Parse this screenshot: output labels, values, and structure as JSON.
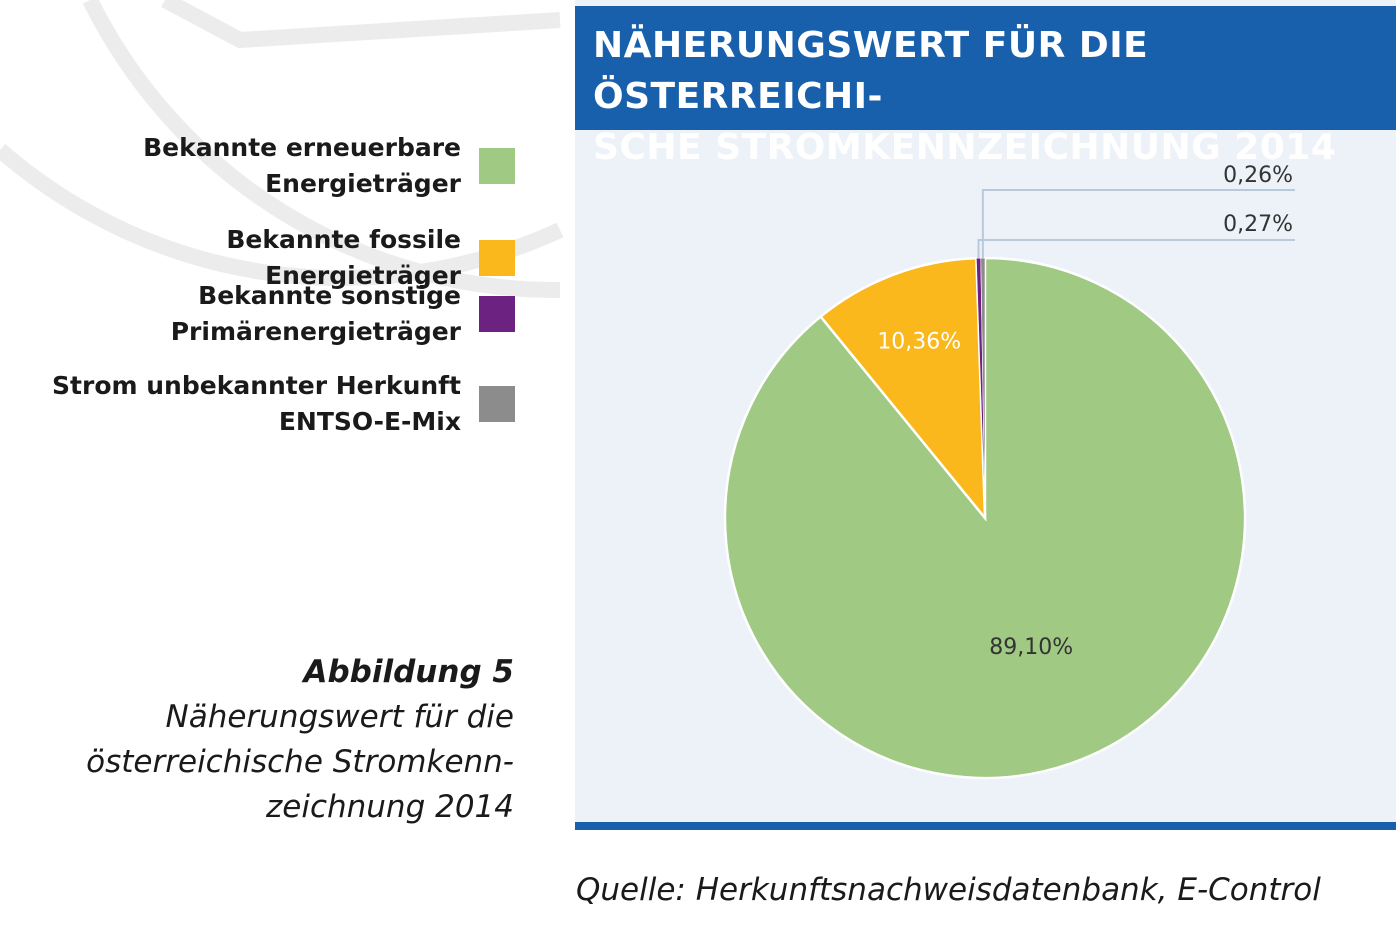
{
  "chart_data": {
    "type": "pie",
    "title": "NÄHERUNGSWERT FÜR DIE ÖSTERREICHI-\nSCHE STROMKENNZEICHNUNG 2014",
    "slices": [
      {
        "name": "Bekannte erneuerbare Energieträger",
        "value": 89.1,
        "label": "89,10%",
        "color": "#a0c983"
      },
      {
        "name": "Bekannte fossile Energieträger",
        "value": 10.36,
        "label": "10,36%",
        "color": "#fab81c"
      },
      {
        "name": "Bekannte sonstige Primärenergieträger",
        "value": 0.27,
        "label": "0,27%",
        "color": "#6b2280"
      },
      {
        "name": "Strom unbekannter Herkunft ENTSO-E-Mix",
        "value": 0.26,
        "label": "0,26%",
        "color": "#8c8c8c"
      }
    ],
    "legend_placement": "left"
  },
  "legend": {
    "items": [
      {
        "label": "Bekannte erneuerbare\nEnergieträger",
        "color": "#a0c983"
      },
      {
        "label": "Bekannte fossile Energieträger",
        "color": "#fab81c"
      },
      {
        "label": "Bekannte sonstige\nPrimärenergieträger",
        "color": "#6b2280"
      },
      {
        "label": "Strom unbekannter Herkunft\nENTSO-E-Mix",
        "color": "#8c8c8c"
      }
    ]
  },
  "caption": {
    "title": "Abbildung 5",
    "text": "Näherungswert für die\nösterreichische Stromkenn-\nzeichnung 2014"
  },
  "source": "Quelle: Herkunftsnachweisdatenbank, E-Control",
  "colors": {
    "header": "#1860ab",
    "panel": "#edf1f8"
  }
}
